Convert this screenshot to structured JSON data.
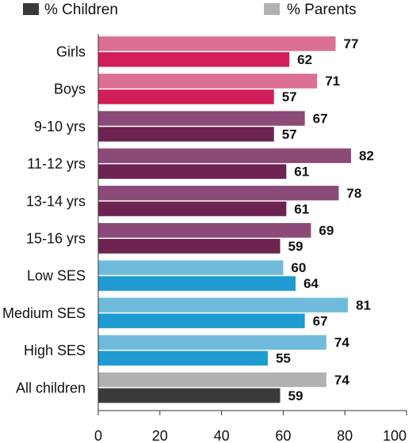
{
  "chart_data": {
    "type": "bar",
    "orientation": "horizontal",
    "categories": [
      "Girls",
      "Boys",
      "9-10 yrs",
      "11-12 yrs",
      "13-14 yrs",
      "15-16 yrs",
      "Low  SES",
      "Medium SES",
      "High SES",
      "All children"
    ],
    "series": [
      {
        "name": "% Parents",
        "values": [
          77,
          71,
          67,
          82,
          78,
          69,
          60,
          81,
          74,
          74
        ]
      },
      {
        "name": "% Children",
        "values": [
          62,
          57,
          57,
          61,
          61,
          59,
          64,
          67,
          55,
          59
        ]
      }
    ],
    "bar_colors": {
      "parents": [
        "#db7092",
        "#db7092",
        "#8c4a78",
        "#8c4a78",
        "#8c4a78",
        "#8c4a78",
        "#70bbdc",
        "#70bbdc",
        "#70bbdc",
        "#b1b1b1"
      ],
      "children": [
        "#d21e56",
        "#d21e56",
        "#6d2451",
        "#6d2451",
        "#6d2451",
        "#6d2451",
        "#1e9bd2",
        "#1e9bd2",
        "#1e9bd2",
        "#3a3a3a"
      ]
    },
    "xlim": [
      0,
      100
    ],
    "xticks": [
      0,
      20,
      40,
      60,
      80,
      100
    ],
    "legend": [
      {
        "label": "% Children",
        "color": "#3a3a3a"
      },
      {
        "label": "% Parents",
        "color": "#b1b1b1"
      }
    ],
    "legend_position": "top",
    "grid": false
  }
}
